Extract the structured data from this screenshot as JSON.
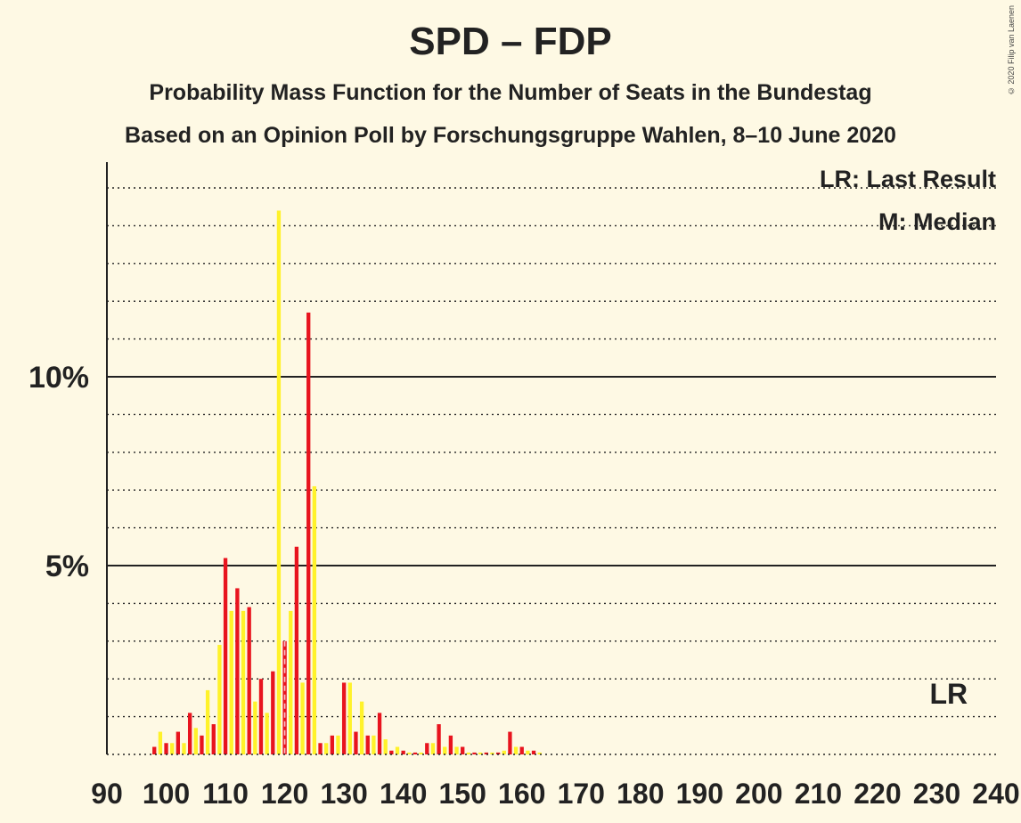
{
  "title": "SPD – FDP",
  "subtitle1": "Probability Mass Function for the Number of Seats in the Bundestag",
  "subtitle2": "Based on an Opinion Poll by Forschungsgruppe Wahlen, 8–10 June 2020",
  "copyright": "© 2020 Filip van Laenen",
  "legend": {
    "lr": "LR: Last Result",
    "median": "M: Median"
  },
  "markers": {
    "lr_label": "LR",
    "lr_seat": 232,
    "median_label": "M",
    "median_seat": 120
  },
  "colors": {
    "last_result": "#e8141e",
    "median": "#fff22a",
    "background": "#fef9e4"
  },
  "chart_data": {
    "type": "bar",
    "xlabel": "",
    "ylabel": "",
    "xlim": [
      90,
      240
    ],
    "ylim": [
      0,
      15
    ],
    "x_ticks": [
      90,
      100,
      110,
      120,
      130,
      140,
      150,
      160,
      170,
      180,
      190,
      200,
      210,
      220,
      230,
      240
    ],
    "y_ticks": [
      {
        "value": 5,
        "label": "5%"
      },
      {
        "value": 10,
        "label": "10%"
      }
    ],
    "series": [
      {
        "color": "#e8141e",
        "x": [
          98,
          100,
          102,
          104,
          106,
          108,
          110,
          112,
          114,
          116,
          118,
          120,
          122,
          124,
          126,
          128,
          130,
          132,
          134,
          136,
          138,
          140,
          142,
          144,
          146,
          148,
          150,
          152,
          154,
          156,
          158,
          160,
          162
        ],
        "values": [
          0.2,
          0.3,
          0.6,
          1.1,
          0.5,
          0.8,
          5.2,
          4.4,
          3.9,
          2.0,
          2.2,
          3.0,
          5.5,
          11.7,
          0.3,
          0.5,
          1.9,
          0.6,
          0.5,
          1.1,
          0.1,
          0.1,
          0.05,
          0.3,
          0.8,
          0.5,
          0.2,
          0.05,
          0.05,
          0.05,
          0.6,
          0.2,
          0.1
        ]
      },
      {
        "color": "#fff22a",
        "x": [
          99,
          101,
          103,
          105,
          107,
          109,
          111,
          113,
          115,
          117,
          119,
          121,
          123,
          125,
          127,
          129,
          131,
          133,
          135,
          137,
          139,
          141,
          143,
          145,
          147,
          149,
          151,
          153,
          155,
          157,
          159,
          161,
          163
        ],
        "values": [
          0.6,
          0.3,
          0.3,
          0.7,
          1.7,
          2.9,
          3.8,
          3.8,
          1.4,
          1.1,
          14.4,
          3.8,
          1.9,
          7.1,
          0.3,
          0.5,
          1.9,
          1.4,
          0.5,
          0.4,
          0.2,
          0.05,
          0.05,
          0.3,
          0.2,
          0.2,
          0.05,
          0.05,
          0.05,
          0.1,
          0.2,
          0.1,
          0.05
        ]
      }
    ]
  }
}
